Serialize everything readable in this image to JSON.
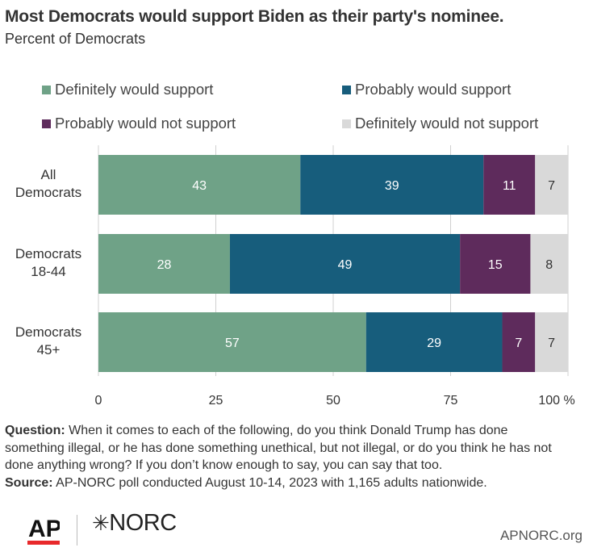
{
  "title": "Most Democrats would support Biden as their party's nominee.",
  "subtitle": "Percent of Democrats",
  "colors": {
    "definitely_support": "#6fa287",
    "probably_support": "#175d7c",
    "probably_not": "#5e2b5c",
    "definitely_not": "#d9d9d9",
    "grid": "#d0d0d0"
  },
  "chart_data": {
    "type": "bar",
    "orientation": "horizontal",
    "stacked": true,
    "categories": [
      "All Democrats",
      "Democrats 18-44",
      "Democrats 45+"
    ],
    "category_lines": [
      [
        "All",
        "Democrats"
      ],
      [
        "Democrats",
        "18-44"
      ],
      [
        "Democrats",
        "45+"
      ]
    ],
    "series": [
      {
        "name": "Definitely would support",
        "values": [
          43,
          28,
          57
        ]
      },
      {
        "name": "Probably would support",
        "values": [
          39,
          49,
          29
        ]
      },
      {
        "name": "Probably would not support",
        "values": [
          11,
          15,
          7
        ]
      },
      {
        "name": "Definitely would not support",
        "values": [
          7,
          8,
          7
        ]
      }
    ],
    "xlim": [
      0,
      100
    ],
    "x_ticks": [
      "0",
      "25",
      "50",
      "75",
      "100 %"
    ],
    "x_tick_values": [
      0,
      25,
      50,
      75,
      100
    ],
    "grid": true,
    "legend_position": "top"
  },
  "footnote": {
    "question_label": "Question:",
    "question_text": "When it comes to each of the following, do you think Donald Trump has done something illegal, or he has done something unethical, but not illegal, or do you think he has not done anything wrong? If you don’t know enough to say, you can say that too.",
    "source_label": "Source:",
    "source_text": "AP-NORC poll conducted August 10-14, 2023 with 1,165 adults nationwide."
  },
  "branding": {
    "ap": "AP",
    "norc": "NORC",
    "site": "APNORC.org"
  }
}
